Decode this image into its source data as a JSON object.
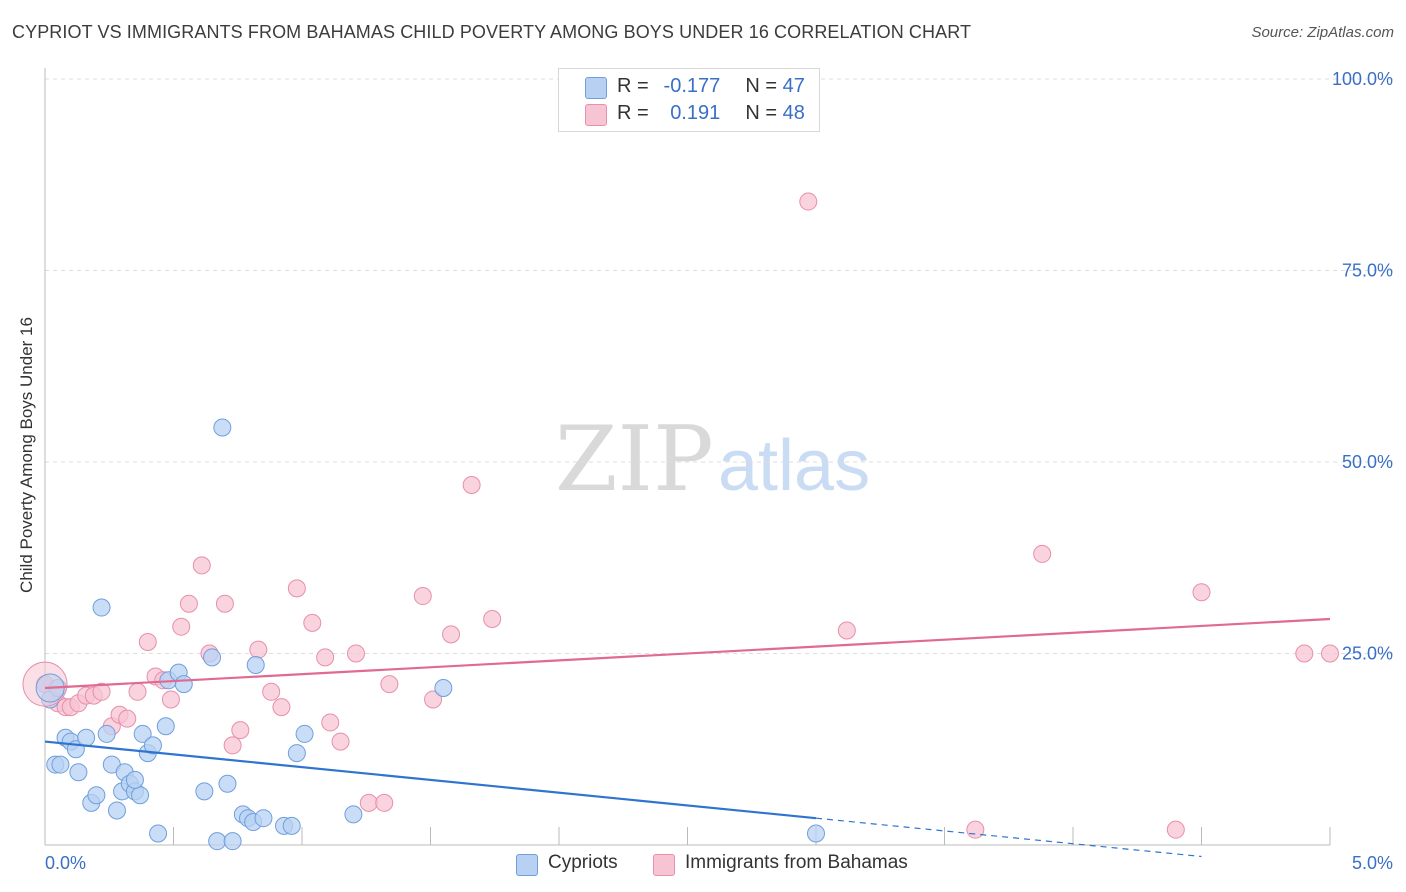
{
  "header": {
    "title": "CYPRIOT VS IMMIGRANTS FROM BAHAMAS CHILD POVERTY AMONG BOYS UNDER 16 CORRELATION CHART",
    "source": "Source: ZipAtlas.com"
  },
  "watermark": {
    "zip": "ZIP",
    "atlas": "atlas"
  },
  "legend": {
    "rows": [
      {
        "r_label": "R =",
        "r_value": "-0.177",
        "n_label": "N =",
        "n_value": "47"
      },
      {
        "r_label": "R =",
        "r_value": "0.191",
        "n_label": "N =",
        "n_value": "48"
      }
    ]
  },
  "bottom_legend": [
    "Cypriots",
    "Immigrants from Bahamas"
  ],
  "colors": {
    "blue_fill": "#b8d1f3",
    "blue_stroke": "#6f9fdc",
    "blue_line": "#2f74cf",
    "pink_fill": "#f7c4d3",
    "pink_stroke": "#e88fac",
    "pink_line": "#e06a92",
    "tick_label": "#3a6fc7",
    "grid": "#dddddd"
  },
  "chart_data": {
    "type": "scatter",
    "title": "CYPRIOT VS IMMIGRANTS FROM BAHAMAS CHILD POVERTY AMONG BOYS UNDER 16 CORRELATION CHART",
    "xlabel": "",
    "ylabel": "Child Poverty Among Boys Under 16",
    "xlim": [
      0,
      5
    ],
    "ylim": [
      0,
      100
    ],
    "x_tick_labels": [
      {
        "value": 0,
        "label": "0.0%"
      },
      {
        "value": 5,
        "label": "5.0%"
      }
    ],
    "y_tick_labels": [
      {
        "value": 25,
        "label": "25.0%"
      },
      {
        "value": 50,
        "label": "50.0%"
      },
      {
        "value": 75,
        "label": "75.0%"
      },
      {
        "value": 100,
        "label": "100.0%"
      }
    ],
    "series": [
      {
        "name": "Cypriots",
        "r": -0.177,
        "n": 47,
        "trend": {
          "x0": 0.0,
          "y0": 13.5,
          "x1": 3.0,
          "y1": 3.5,
          "dashed_to_x": 4.5,
          "dashed_to_y": -1.5
        },
        "points": [
          [
            0.02,
            19.0
          ],
          [
            0.04,
            10.5
          ],
          [
            0.06,
            10.5
          ],
          [
            0.08,
            14.0
          ],
          [
            0.1,
            13.5
          ],
          [
            0.12,
            12.5
          ],
          [
            0.13,
            9.5
          ],
          [
            0.16,
            14.0
          ],
          [
            0.18,
            5.5
          ],
          [
            0.2,
            6.5
          ],
          [
            0.22,
            31.0
          ],
          [
            0.24,
            14.5
          ],
          [
            0.26,
            10.5
          ],
          [
            0.28,
            4.5
          ],
          [
            0.3,
            7.0
          ],
          [
            0.31,
            9.5
          ],
          [
            0.33,
            8.0
          ],
          [
            0.35,
            7.0
          ],
          [
            0.37,
            6.5
          ],
          [
            0.38,
            14.5
          ],
          [
            0.4,
            12.0
          ],
          [
            0.42,
            13.0
          ],
          [
            0.44,
            1.5
          ],
          [
            0.47,
            15.5
          ],
          [
            0.48,
            21.5
          ],
          [
            0.52,
            22.5
          ],
          [
            0.62,
            7.0
          ],
          [
            0.65,
            24.5
          ],
          [
            0.67,
            0.5
          ],
          [
            0.69,
            54.5
          ],
          [
            0.71,
            8.0
          ],
          [
            0.73,
            0.5
          ],
          [
            0.77,
            4.0
          ],
          [
            0.79,
            3.5
          ],
          [
            0.81,
            3.0
          ],
          [
            0.82,
            23.5
          ],
          [
            0.85,
            3.5
          ],
          [
            0.93,
            2.5
          ],
          [
            0.96,
            2.5
          ],
          [
            0.98,
            12.0
          ],
          [
            1.01,
            14.5
          ],
          [
            1.2,
            4.0
          ],
          [
            1.55,
            20.5
          ],
          [
            3.0,
            1.5
          ],
          [
            0.05,
            20.5
          ],
          [
            0.54,
            21.0
          ],
          [
            0.35,
            8.5
          ]
        ]
      },
      {
        "name": "Immigrants from Bahamas",
        "r": 0.191,
        "n": 48,
        "trend": {
          "x0": 0.0,
          "y0": 20.5,
          "x1": 5.0,
          "y1": 29.5
        },
        "points": [
          [
            0.0,
            21.0
          ],
          [
            0.05,
            18.5
          ],
          [
            0.08,
            18.0
          ],
          [
            0.1,
            18.0
          ],
          [
            0.13,
            18.5
          ],
          [
            0.16,
            19.5
          ],
          [
            0.19,
            19.5
          ],
          [
            0.22,
            20.0
          ],
          [
            0.26,
            15.5
          ],
          [
            0.29,
            17.0
          ],
          [
            0.32,
            16.5
          ],
          [
            0.36,
            20.0
          ],
          [
            0.4,
            26.5
          ],
          [
            0.43,
            22.0
          ],
          [
            0.46,
            21.5
          ],
          [
            0.49,
            19.0
          ],
          [
            0.53,
            28.5
          ],
          [
            0.56,
            31.5
          ],
          [
            0.61,
            36.5
          ],
          [
            0.64,
            25.0
          ],
          [
            0.7,
            31.5
          ],
          [
            0.73,
            13.0
          ],
          [
            0.76,
            15.0
          ],
          [
            0.83,
            25.5
          ],
          [
            0.88,
            20.0
          ],
          [
            0.92,
            18.0
          ],
          [
            0.98,
            33.5
          ],
          [
            1.04,
            29.0
          ],
          [
            1.09,
            24.5
          ],
          [
            1.11,
            16.0
          ],
          [
            1.15,
            13.5
          ],
          [
            1.21,
            25.0
          ],
          [
            1.26,
            5.5
          ],
          [
            1.32,
            5.5
          ],
          [
            1.34,
            21.0
          ],
          [
            1.47,
            32.5
          ],
          [
            1.51,
            19.0
          ],
          [
            1.58,
            27.5
          ],
          [
            1.66,
            47.0
          ],
          [
            1.74,
            29.5
          ],
          [
            2.97,
            84.0
          ],
          [
            3.12,
            28.0
          ],
          [
            3.62,
            2.0
          ],
          [
            3.88,
            38.0
          ],
          [
            4.4,
            2.0
          ],
          [
            4.5,
            33.0
          ],
          [
            4.9,
            25.0
          ],
          [
            5.0,
            25.0
          ]
        ]
      }
    ]
  }
}
